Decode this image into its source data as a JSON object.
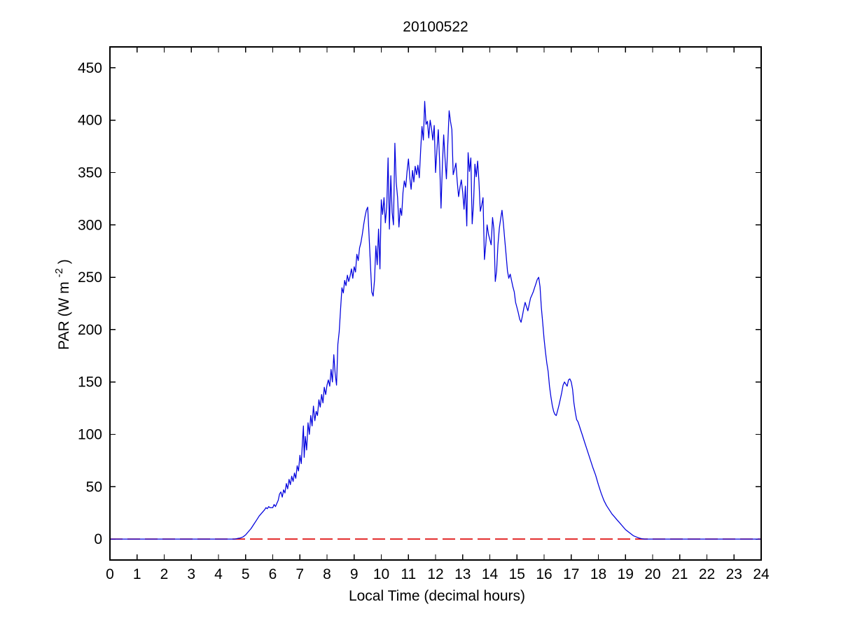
{
  "chart_data": {
    "type": "line",
    "title": "20100522",
    "xlabel": "Local Time (decimal hours)",
    "ylabel": "PAR (W m^-2)",
    "ylabel_parts": {
      "base": "PAR (W m",
      "sup": "-2",
      "end": ")"
    },
    "xlim": [
      0,
      24
    ],
    "ylim": [
      -20,
      470
    ],
    "xticks": [
      0,
      1,
      2,
      3,
      4,
      5,
      6,
      7,
      8,
      9,
      10,
      11,
      12,
      13,
      14,
      15,
      16,
      17,
      18,
      19,
      20,
      21,
      22,
      23,
      24
    ],
    "yticks": [
      0,
      50,
      100,
      150,
      200,
      250,
      300,
      350,
      400,
      450
    ],
    "grid": false,
    "legend": null,
    "colors": {
      "par_line": "#0000dd",
      "zero_line": "#dd0000",
      "frame": "#000000",
      "background": "#ffffff"
    },
    "series": [
      {
        "name": "PAR",
        "style": "solid",
        "color": "#0000dd",
        "points": [
          [
            0,
            0
          ],
          [
            0.5,
            0
          ],
          [
            1,
            0
          ],
          [
            1.5,
            0
          ],
          [
            2,
            0
          ],
          [
            2.5,
            0
          ],
          [
            3,
            0
          ],
          [
            3.5,
            0
          ],
          [
            4,
            0
          ],
          [
            4.3,
            0
          ],
          [
            4.6,
            0
          ],
          [
            4.7,
            0.5
          ],
          [
            4.8,
            1
          ],
          [
            4.9,
            2
          ],
          [
            5,
            4
          ],
          [
            5.1,
            7
          ],
          [
            5.2,
            10
          ],
          [
            5.3,
            14
          ],
          [
            5.4,
            18
          ],
          [
            5.5,
            22
          ],
          [
            5.6,
            25
          ],
          [
            5.7,
            28
          ],
          [
            5.75,
            30
          ],
          [
            5.8,
            29
          ],
          [
            5.85,
            31
          ],
          [
            5.9,
            30
          ],
          [
            5.95,
            30
          ],
          [
            6,
            30
          ],
          [
            6.05,
            33
          ],
          [
            6.1,
            31
          ],
          [
            6.15,
            34
          ],
          [
            6.2,
            37
          ],
          [
            6.25,
            43
          ],
          [
            6.3,
            45
          ],
          [
            6.35,
            40
          ],
          [
            6.4,
            47
          ],
          [
            6.45,
            44
          ],
          [
            6.5,
            53
          ],
          [
            6.55,
            48
          ],
          [
            6.6,
            57
          ],
          [
            6.65,
            52
          ],
          [
            6.7,
            60
          ],
          [
            6.75,
            55
          ],
          [
            6.8,
            63
          ],
          [
            6.85,
            58
          ],
          [
            6.9,
            70
          ],
          [
            6.95,
            65
          ],
          [
            7,
            80
          ],
          [
            7.05,
            72
          ],
          [
            7.1,
            95
          ],
          [
            7.13,
            108
          ],
          [
            7.16,
            78
          ],
          [
            7.2,
            98
          ],
          [
            7.25,
            85
          ],
          [
            7.3,
            111
          ],
          [
            7.35,
            100
          ],
          [
            7.4,
            118
          ],
          [
            7.45,
            108
          ],
          [
            7.5,
            127
          ],
          [
            7.55,
            113
          ],
          [
            7.6,
            122
          ],
          [
            7.65,
            118
          ],
          [
            7.7,
            133
          ],
          [
            7.75,
            126
          ],
          [
            7.8,
            138
          ],
          [
            7.85,
            130
          ],
          [
            7.9,
            145
          ],
          [
            7.95,
            138
          ],
          [
            8,
            147
          ],
          [
            8.05,
            152
          ],
          [
            8.1,
            146
          ],
          [
            8.15,
            162
          ],
          [
            8.2,
            150
          ],
          [
            8.25,
            176
          ],
          [
            8.3,
            158
          ],
          [
            8.35,
            147
          ],
          [
            8.4,
            186
          ],
          [
            8.45,
            198
          ],
          [
            8.5,
            220
          ],
          [
            8.55,
            240
          ],
          [
            8.6,
            235
          ],
          [
            8.65,
            247
          ],
          [
            8.7,
            242
          ],
          [
            8.75,
            252
          ],
          [
            8.8,
            246
          ],
          [
            8.85,
            251
          ],
          [
            8.9,
            258
          ],
          [
            8.95,
            249
          ],
          [
            9,
            260
          ],
          [
            9.05,
            255
          ],
          [
            9.1,
            272
          ],
          [
            9.15,
            266
          ],
          [
            9.2,
            278
          ],
          [
            9.25,
            283
          ],
          [
            9.3,
            291
          ],
          [
            9.35,
            300
          ],
          [
            9.4,
            308
          ],
          [
            9.45,
            314
          ],
          [
            9.5,
            317
          ],
          [
            9.55,
            289
          ],
          [
            9.6,
            262
          ],
          [
            9.65,
            236
          ],
          [
            9.7,
            232
          ],
          [
            9.75,
            247
          ],
          [
            9.8,
            280
          ],
          [
            9.85,
            262
          ],
          [
            9.9,
            296
          ],
          [
            9.95,
            258
          ],
          [
            10,
            324
          ],
          [
            10.05,
            310
          ],
          [
            10.1,
            326
          ],
          [
            10.15,
            302
          ],
          [
            10.2,
            317
          ],
          [
            10.25,
            364
          ],
          [
            10.3,
            296
          ],
          [
            10.35,
            347
          ],
          [
            10.4,
            312
          ],
          [
            10.45,
            300
          ],
          [
            10.5,
            378
          ],
          [
            10.55,
            341
          ],
          [
            10.6,
            326
          ],
          [
            10.65,
            298
          ],
          [
            10.7,
            316
          ],
          [
            10.75,
            309
          ],
          [
            10.8,
            331
          ],
          [
            10.85,
            342
          ],
          [
            10.9,
            336
          ],
          [
            10.95,
            351
          ],
          [
            11,
            363
          ],
          [
            11.05,
            345
          ],
          [
            11.1,
            334
          ],
          [
            11.15,
            352
          ],
          [
            11.2,
            341
          ],
          [
            11.25,
            356
          ],
          [
            11.3,
            348
          ],
          [
            11.35,
            357
          ],
          [
            11.4,
            345
          ],
          [
            11.45,
            371
          ],
          [
            11.5,
            394
          ],
          [
            11.55,
            381
          ],
          [
            11.6,
            418
          ],
          [
            11.65,
            396
          ],
          [
            11.7,
            399
          ],
          [
            11.75,
            383
          ],
          [
            11.8,
            400
          ],
          [
            11.85,
            392
          ],
          [
            11.9,
            381
          ],
          [
            11.95,
            395
          ],
          [
            12,
            350
          ],
          [
            12.05,
            371
          ],
          [
            12.1,
            391
          ],
          [
            12.15,
            361
          ],
          [
            12.2,
            316
          ],
          [
            12.25,
            356
          ],
          [
            12.3,
            386
          ],
          [
            12.35,
            363
          ],
          [
            12.4,
            344
          ],
          [
            12.45,
            376
          ],
          [
            12.5,
            409
          ],
          [
            12.55,
            399
          ],
          [
            12.6,
            391
          ],
          [
            12.65,
            348
          ],
          [
            12.7,
            353
          ],
          [
            12.75,
            359
          ],
          [
            12.8,
            341
          ],
          [
            12.85,
            327
          ],
          [
            12.9,
            336
          ],
          [
            12.95,
            343
          ],
          [
            13,
            331
          ],
          [
            13.05,
            315
          ],
          [
            13.1,
            337
          ],
          [
            13.15,
            299
          ],
          [
            13.2,
            369
          ],
          [
            13.25,
            351
          ],
          [
            13.3,
            364
          ],
          [
            13.35,
            301
          ],
          [
            13.4,
            321
          ],
          [
            13.45,
            358
          ],
          [
            13.5,
            346
          ],
          [
            13.55,
            361
          ],
          [
            13.6,
            341
          ],
          [
            13.65,
            313
          ],
          [
            13.7,
            319
          ],
          [
            13.75,
            326
          ],
          [
            13.8,
            267
          ],
          [
            13.85,
            281
          ],
          [
            13.9,
            300
          ],
          [
            13.95,
            291
          ],
          [
            14,
            286
          ],
          [
            14.05,
            281
          ],
          [
            14.1,
            307
          ],
          [
            14.15,
            296
          ],
          [
            14.2,
            246
          ],
          [
            14.25,
            256
          ],
          [
            14.3,
            281
          ],
          [
            14.35,
            297
          ],
          [
            14.4,
            306
          ],
          [
            14.45,
            314
          ],
          [
            14.5,
            301
          ],
          [
            14.55,
            286
          ],
          [
            14.6,
            271
          ],
          [
            14.65,
            256
          ],
          [
            14.7,
            249
          ],
          [
            14.75,
            253
          ],
          [
            14.8,
            247
          ],
          [
            14.85,
            241
          ],
          [
            14.9,
            236
          ],
          [
            14.95,
            226
          ],
          [
            15,
            221
          ],
          [
            15.05,
            216
          ],
          [
            15.1,
            210
          ],
          [
            15.15,
            207
          ],
          [
            15.2,
            213
          ],
          [
            15.25,
            220
          ],
          [
            15.3,
            226
          ],
          [
            15.35,
            222
          ],
          [
            15.4,
            218
          ],
          [
            15.45,
            224
          ],
          [
            15.5,
            230
          ],
          [
            15.55,
            233
          ],
          [
            15.6,
            236
          ],
          [
            15.65,
            240
          ],
          [
            15.7,
            244
          ],
          [
            15.75,
            248
          ],
          [
            15.8,
            250
          ],
          [
            15.85,
            241
          ],
          [
            15.9,
            221
          ],
          [
            15.95,
            206
          ],
          [
            16,
            191
          ],
          [
            16.05,
            179
          ],
          [
            16.1,
            168
          ],
          [
            16.15,
            160
          ],
          [
            16.2,
            146
          ],
          [
            16.25,
            136
          ],
          [
            16.3,
            128
          ],
          [
            16.35,
            122
          ],
          [
            16.4,
            119
          ],
          [
            16.45,
            118
          ],
          [
            16.5,
            123
          ],
          [
            16.55,
            128
          ],
          [
            16.6,
            134
          ],
          [
            16.65,
            140
          ],
          [
            16.7,
            147
          ],
          [
            16.75,
            150
          ],
          [
            16.8,
            148
          ],
          [
            16.85,
            146
          ],
          [
            16.9,
            152
          ],
          [
            16.95,
            153
          ],
          [
            17,
            150
          ],
          [
            17.05,
            143
          ],
          [
            17.1,
            130
          ],
          [
            17.15,
            121
          ],
          [
            17.2,
            114
          ],
          [
            17.25,
            112
          ],
          [
            17.3,
            108
          ],
          [
            17.35,
            104
          ],
          [
            17.4,
            100
          ],
          [
            17.5,
            92
          ],
          [
            17.6,
            84
          ],
          [
            17.7,
            76
          ],
          [
            17.8,
            68
          ],
          [
            17.9,
            61
          ],
          [
            18,
            52
          ],
          [
            18.1,
            44
          ],
          [
            18.2,
            37
          ],
          [
            18.3,
            32
          ],
          [
            18.4,
            28
          ],
          [
            18.5,
            24
          ],
          [
            18.6,
            21
          ],
          [
            18.7,
            18
          ],
          [
            18.8,
            15
          ],
          [
            18.9,
            12
          ],
          [
            19,
            9
          ],
          [
            19.1,
            7
          ],
          [
            19.2,
            5
          ],
          [
            19.3,
            3
          ],
          [
            19.4,
            2
          ],
          [
            19.5,
            1
          ],
          [
            19.6,
            0.3
          ],
          [
            19.7,
            0
          ],
          [
            20,
            0
          ],
          [
            20.5,
            0
          ],
          [
            21,
            0
          ],
          [
            21.5,
            0
          ],
          [
            22,
            0
          ],
          [
            22.5,
            0
          ],
          [
            23,
            0
          ],
          [
            23.5,
            0
          ],
          [
            24,
            0
          ]
        ]
      },
      {
        "name": "zero reference",
        "style": "dashed",
        "color": "#dd0000",
        "points": [
          [
            0,
            0
          ],
          [
            24,
            0
          ]
        ]
      }
    ]
  }
}
